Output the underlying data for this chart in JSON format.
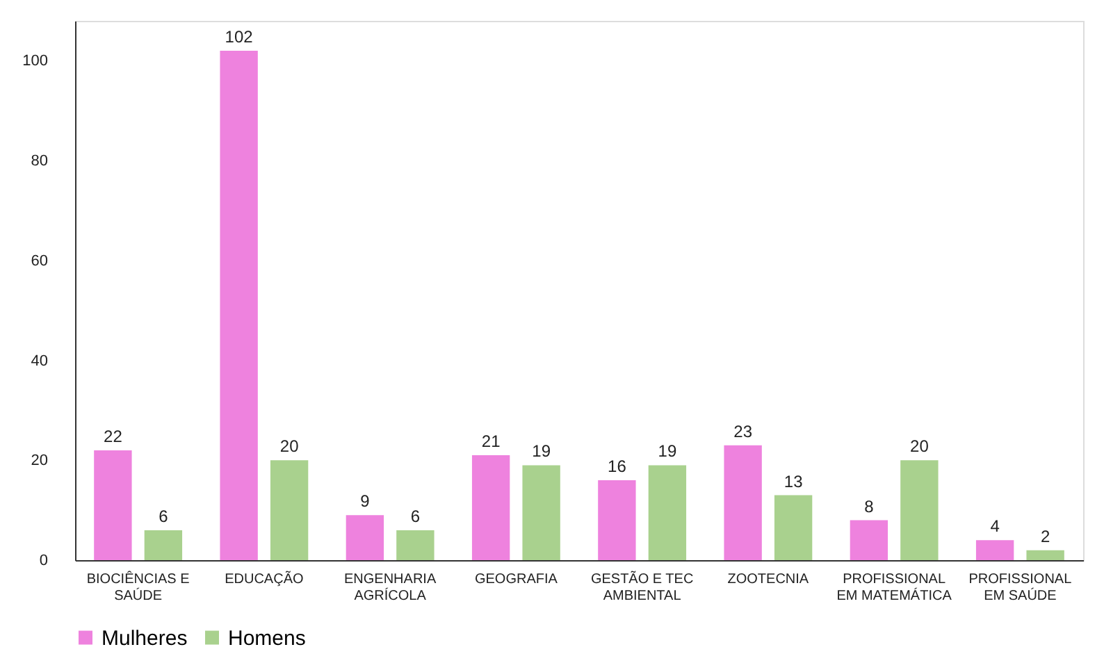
{
  "chart_data": {
    "type": "bar",
    "categories": [
      "BIOCIÊNCIAS E SAÚDE",
      "EDUCAÇÃO",
      "ENGENHARIA AGRÍCOLA",
      "GEOGRAFIA",
      "GESTÃO E TEC AMBIENTAL",
      "ZOOTECNIA",
      "PROFISSIONAL EM MATEMÁTICA",
      "PROFISSIONAL EM SAÚDE"
    ],
    "series": [
      {
        "name": "Mulheres",
        "color": "#ee82de",
        "values": [
          22,
          102,
          9,
          21,
          16,
          23,
          8,
          4
        ]
      },
      {
        "name": "Homens",
        "color": "#a9d18e",
        "values": [
          6,
          20,
          6,
          19,
          19,
          13,
          20,
          2
        ]
      }
    ],
    "ylim": [
      0,
      108
    ],
    "yticks": [
      0,
      20,
      40,
      60,
      80,
      100
    ],
    "grid": false,
    "legend": "bottom",
    "data_labels": true
  }
}
